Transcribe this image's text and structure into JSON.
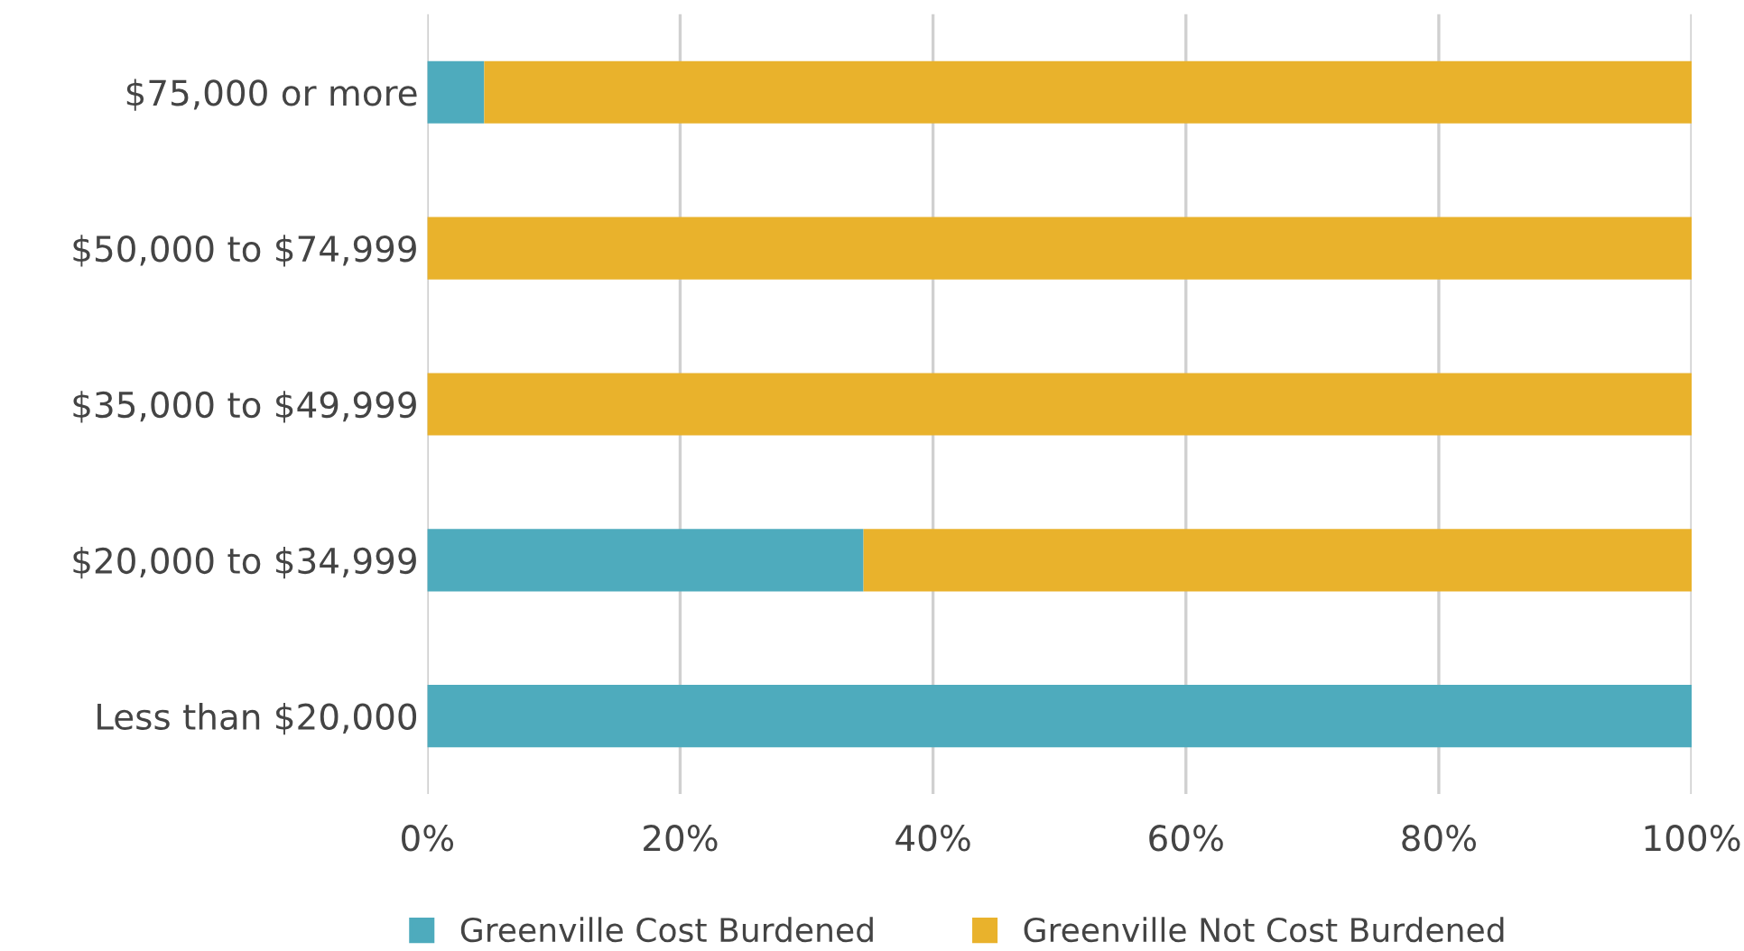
{
  "chart_data": {
    "type": "bar",
    "orientation": "horizontal",
    "stacked": true,
    "categories": [
      "$75,000 or more",
      "$50,000 to $74,999",
      "$35,000 to $49,999",
      "$20,000 to $34,999",
      "Less than $20,000"
    ],
    "series": [
      {
        "name": "Greenville Cost Burdened",
        "color": "#4eabbd",
        "values": [
          4.5,
          0,
          0,
          34.5,
          100
        ]
      },
      {
        "name": "Greenville Not Cost Burdened",
        "color": "#e9b22c",
        "values": [
          95.5,
          100,
          100,
          65.5,
          0
        ]
      }
    ],
    "xlim": [
      0,
      100
    ],
    "xticks": [
      {
        "value": 0,
        "label": "0%"
      },
      {
        "value": 20,
        "label": "20%"
      },
      {
        "value": 40,
        "label": "40%"
      },
      {
        "value": 60,
        "label": "60%"
      },
      {
        "value": 80,
        "label": "80%"
      },
      {
        "value": 100,
        "label": "100%"
      }
    ],
    "grid": "x",
    "legend": "bottom"
  }
}
